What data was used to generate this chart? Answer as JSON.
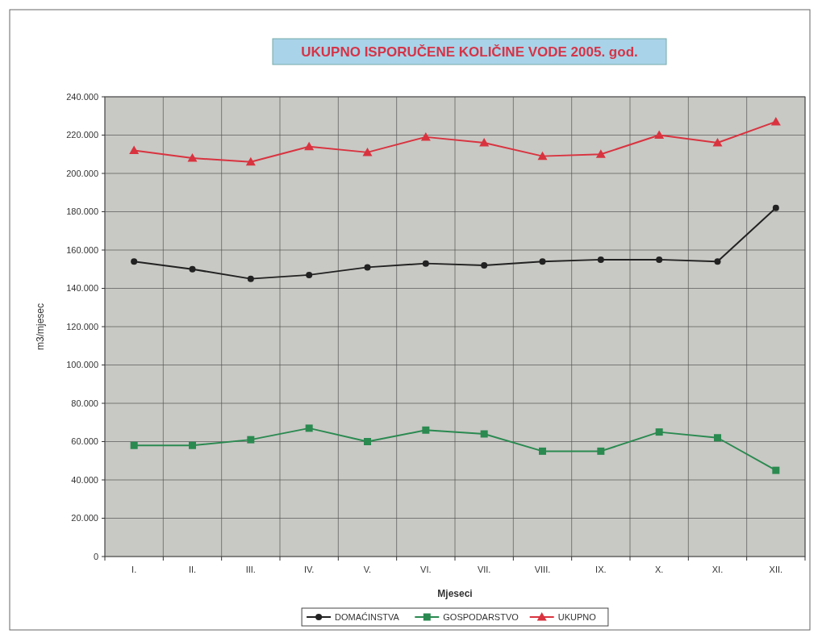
{
  "chart_data": {
    "type": "line",
    "title": "UKUPNO ISPORUČENE KOLIČINE VODE 2005. god.",
    "xlabel": "Mjeseci",
    "ylabel": "m3/mjesec",
    "categories": [
      "I.",
      "II.",
      "III.",
      "IV.",
      "V.",
      "VI.",
      "VII.",
      "VIII.",
      "IX.",
      "X.",
      "XI.",
      "XII."
    ],
    "series": [
      {
        "name": "DOMAĆINSTVA",
        "color": "#222222",
        "marker": "circle",
        "values": [
          154000,
          150000,
          145000,
          147000,
          151000,
          153000,
          152000,
          154000,
          155000,
          155000,
          154000,
          182000
        ]
      },
      {
        "name": "GOSPODARSTVO",
        "color": "#2a8a50",
        "marker": "square",
        "values": [
          58000,
          58000,
          61000,
          67000,
          60000,
          66000,
          64000,
          55000,
          55000,
          65000,
          62000,
          45000
        ]
      },
      {
        "name": "UKUPNO",
        "color": "#d9333f",
        "marker": "triangle",
        "values": [
          212000,
          208000,
          206000,
          214000,
          211000,
          219000,
          216000,
          209000,
          210000,
          220000,
          216000,
          227000
        ]
      }
    ],
    "ylim": [
      0,
      240000
    ],
    "yticks": [
      {
        "value": 0,
        "label": "0"
      },
      {
        "value": 20000,
        "label": "20.000"
      },
      {
        "value": 40000,
        "label": "40.000"
      },
      {
        "value": 60000,
        "label": "60.000"
      },
      {
        "value": 80000,
        "label": "80.000"
      },
      {
        "value": 100000,
        "label": "100.000"
      },
      {
        "value": 120000,
        "label": "120.000"
      },
      {
        "value": 140000,
        "label": "140.000"
      },
      {
        "value": 160000,
        "label": "160.000"
      },
      {
        "value": 180000,
        "label": "180.000"
      },
      {
        "value": 200000,
        "label": "200.000"
      },
      {
        "value": 220000,
        "label": "220.000"
      },
      {
        "value": 240000,
        "label": "240.000"
      }
    ],
    "grid": true,
    "legend": "bottom"
  }
}
